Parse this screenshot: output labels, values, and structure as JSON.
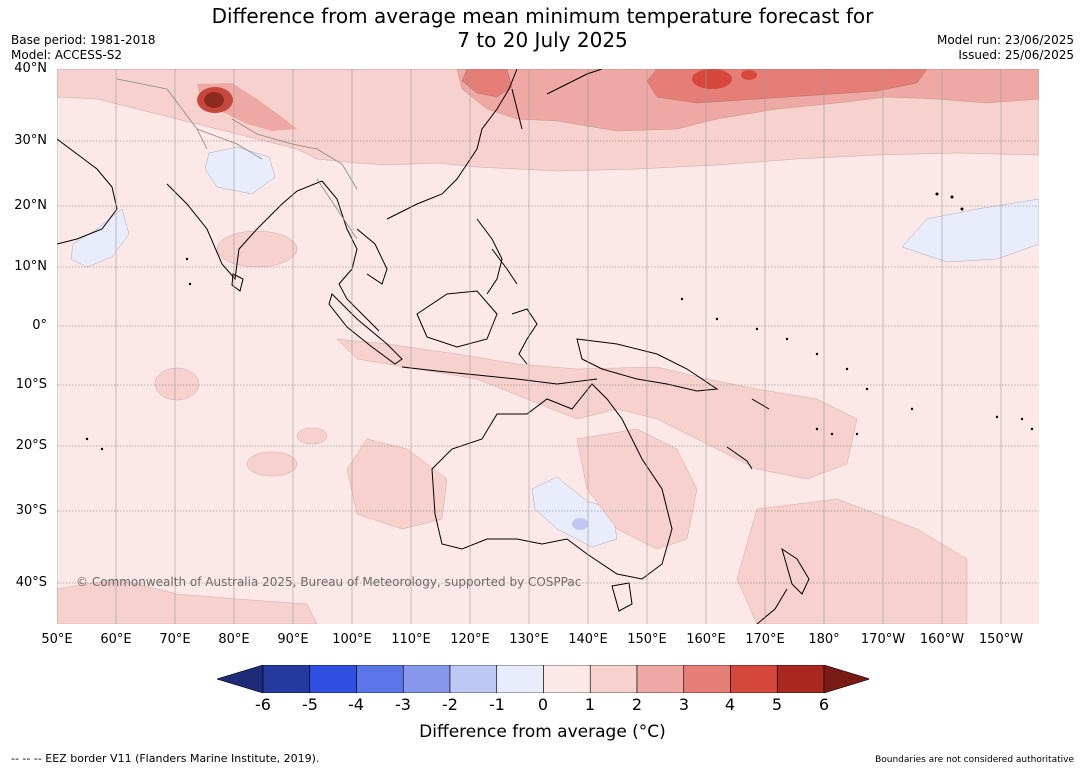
{
  "title_line1": "Difference from average mean minimum temperature forecast for",
  "title_line2": "7 to 20 July 2025",
  "meta_left": {
    "base_period": "Base period: 1981-2018",
    "model": "Model: ACCESS-S2"
  },
  "meta_right": {
    "model_run": "Model run: 23/06/2025",
    "issued": "Issued: 25/06/2025"
  },
  "latitude_labels": [
    "40°N",
    "30°N",
    "20°N",
    "10°N",
    "0°",
    "10°S",
    "20°S",
    "30°S",
    "40°S"
  ],
  "longitude_labels": [
    "50°E",
    "60°E",
    "70°E",
    "80°E",
    "90°E",
    "100°E",
    "110°E",
    "120°E",
    "130°E",
    "140°E",
    "150°E",
    "160°E",
    "170°E",
    "180°",
    "170°W",
    "160°W",
    "150°W"
  ],
  "copyright": "© Commonwealth of Australia 2025, Bureau of Meteorology, supported by COSPPac",
  "colorbar": {
    "title": "Difference from average (°C)",
    "ticks": [
      "-6",
      "-5",
      "-4",
      "-3",
      "-2",
      "-1",
      "0",
      "1",
      "2",
      "3",
      "4",
      "5",
      "6"
    ],
    "colors": [
      "#26399e",
      "#2f4fe0",
      "#5a75e6",
      "#8797ec",
      "#bec8f4",
      "#e8ecfb",
      "#fce9e7",
      "#f6d1cd",
      "#eea9a4",
      "#e47e76",
      "#d7483c",
      "#a8281f"
    ],
    "under_color": "#1e2c78",
    "over_color": "#7a1a14"
  },
  "footer_left": "--  --  -- EEZ border V11 (Flanders Marine Institute, 2019).",
  "footer_right": "Boundaries are not considered authoritative"
}
